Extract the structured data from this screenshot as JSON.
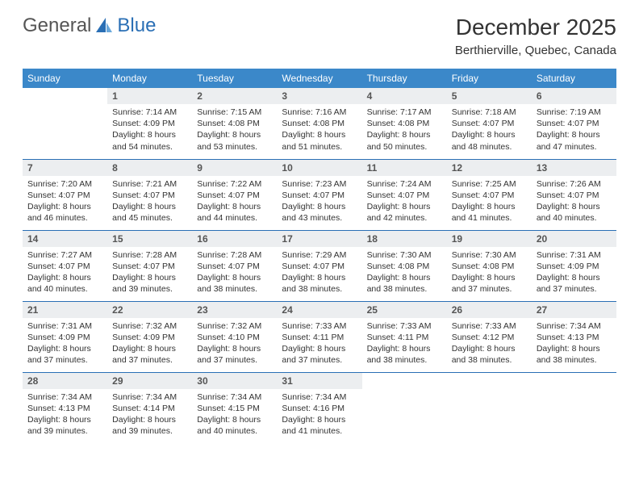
{
  "logo": {
    "text1": "General",
    "text2": "Blue"
  },
  "header": {
    "title": "December 2025",
    "location": "Berthierville, Quebec, Canada"
  },
  "colors": {
    "header_bg": "#3b88c9",
    "daynum_bg": "#eceef0",
    "rule": "#2a6fb5",
    "text": "#333333",
    "logo_blue": "#2a6fb5"
  },
  "weekdays": [
    "Sunday",
    "Monday",
    "Tuesday",
    "Wednesday",
    "Thursday",
    "Friday",
    "Saturday"
  ],
  "weeks": [
    [
      null,
      {
        "n": "1",
        "sr": "7:14 AM",
        "ss": "4:09 PM",
        "dh": "8",
        "dm": "54"
      },
      {
        "n": "2",
        "sr": "7:15 AM",
        "ss": "4:08 PM",
        "dh": "8",
        "dm": "53"
      },
      {
        "n": "3",
        "sr": "7:16 AM",
        "ss": "4:08 PM",
        "dh": "8",
        "dm": "51"
      },
      {
        "n": "4",
        "sr": "7:17 AM",
        "ss": "4:08 PM",
        "dh": "8",
        "dm": "50"
      },
      {
        "n": "5",
        "sr": "7:18 AM",
        "ss": "4:07 PM",
        "dh": "8",
        "dm": "48"
      },
      {
        "n": "6",
        "sr": "7:19 AM",
        "ss": "4:07 PM",
        "dh": "8",
        "dm": "47"
      }
    ],
    [
      {
        "n": "7",
        "sr": "7:20 AM",
        "ss": "4:07 PM",
        "dh": "8",
        "dm": "46"
      },
      {
        "n": "8",
        "sr": "7:21 AM",
        "ss": "4:07 PM",
        "dh": "8",
        "dm": "45"
      },
      {
        "n": "9",
        "sr": "7:22 AM",
        "ss": "4:07 PM",
        "dh": "8",
        "dm": "44"
      },
      {
        "n": "10",
        "sr": "7:23 AM",
        "ss": "4:07 PM",
        "dh": "8",
        "dm": "43"
      },
      {
        "n": "11",
        "sr": "7:24 AM",
        "ss": "4:07 PM",
        "dh": "8",
        "dm": "42"
      },
      {
        "n": "12",
        "sr": "7:25 AM",
        "ss": "4:07 PM",
        "dh": "8",
        "dm": "41"
      },
      {
        "n": "13",
        "sr": "7:26 AM",
        "ss": "4:07 PM",
        "dh": "8",
        "dm": "40"
      }
    ],
    [
      {
        "n": "14",
        "sr": "7:27 AM",
        "ss": "4:07 PM",
        "dh": "8",
        "dm": "40"
      },
      {
        "n": "15",
        "sr": "7:28 AM",
        "ss": "4:07 PM",
        "dh": "8",
        "dm": "39"
      },
      {
        "n": "16",
        "sr": "7:28 AM",
        "ss": "4:07 PM",
        "dh": "8",
        "dm": "38"
      },
      {
        "n": "17",
        "sr": "7:29 AM",
        "ss": "4:07 PM",
        "dh": "8",
        "dm": "38"
      },
      {
        "n": "18",
        "sr": "7:30 AM",
        "ss": "4:08 PM",
        "dh": "8",
        "dm": "38"
      },
      {
        "n": "19",
        "sr": "7:30 AM",
        "ss": "4:08 PM",
        "dh": "8",
        "dm": "37"
      },
      {
        "n": "20",
        "sr": "7:31 AM",
        "ss": "4:09 PM",
        "dh": "8",
        "dm": "37"
      }
    ],
    [
      {
        "n": "21",
        "sr": "7:31 AM",
        "ss": "4:09 PM",
        "dh": "8",
        "dm": "37"
      },
      {
        "n": "22",
        "sr": "7:32 AM",
        "ss": "4:09 PM",
        "dh": "8",
        "dm": "37"
      },
      {
        "n": "23",
        "sr": "7:32 AM",
        "ss": "4:10 PM",
        "dh": "8",
        "dm": "37"
      },
      {
        "n": "24",
        "sr": "7:33 AM",
        "ss": "4:11 PM",
        "dh": "8",
        "dm": "37"
      },
      {
        "n": "25",
        "sr": "7:33 AM",
        "ss": "4:11 PM",
        "dh": "8",
        "dm": "38"
      },
      {
        "n": "26",
        "sr": "7:33 AM",
        "ss": "4:12 PM",
        "dh": "8",
        "dm": "38"
      },
      {
        "n": "27",
        "sr": "7:34 AM",
        "ss": "4:13 PM",
        "dh": "8",
        "dm": "38"
      }
    ],
    [
      {
        "n": "28",
        "sr": "7:34 AM",
        "ss": "4:13 PM",
        "dh": "8",
        "dm": "39"
      },
      {
        "n": "29",
        "sr": "7:34 AM",
        "ss": "4:14 PM",
        "dh": "8",
        "dm": "39"
      },
      {
        "n": "30",
        "sr": "7:34 AM",
        "ss": "4:15 PM",
        "dh": "8",
        "dm": "40"
      },
      {
        "n": "31",
        "sr": "7:34 AM",
        "ss": "4:16 PM",
        "dh": "8",
        "dm": "41"
      },
      null,
      null,
      null
    ]
  ],
  "labels": {
    "sunrise": "Sunrise:",
    "sunset": "Sunset:",
    "daylight": "Daylight:",
    "hours_word": "hours",
    "and_word": "and",
    "minutes_word": "minutes."
  }
}
